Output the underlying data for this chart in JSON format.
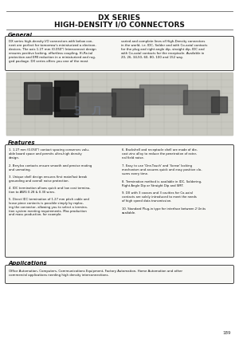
{
  "bg_color": "#ffffff",
  "title_line1": "DX SERIES",
  "title_line2": "HIGH-DENSITY I/O CONNECTORS",
  "general_title": "General",
  "general_text1": "DX series high-density I/O connectors with below con-\nnent are perfect for tomorrow's miniaturized a electron-\ndevices. The axis 1.27 mm (0.050\") Interconnect design\nensures positive locking, effortless coupling, Hi-Re-tal\nprotection and EMI reduction in a miniaturized and rug-\nged package. DX series offers you one of the most",
  "general_text2": "varied and complete lines of High-Density connectors\nin the world, i.e. IDC, Solder and with Co-axial contacts\nfor the plug and right angle dip, straight dip, IDC and\nwith Co-axial contacts for the receptacle. Available in\n20, 26, 34,50, 60, 80, 100 and 152 way.",
  "features_title": "Features",
  "features_left": [
    "1.27 mm (0.050\") contact spacing conserves valu-\nable board space and permits ultra-high density\ndesign.",
    "Berylco contacts ensure smooth and precise mating\nand unmating.",
    "Unique shell design ensures first mate/last break\ngrounding and overall noise protection.",
    "IDC termination allows quick and low cost termina-\ntion to AWG 0.28 & 0.30 wires.",
    "Direct IDC termination of 1.27 mm pitch cable and\nloose piece contacts is possible simply by replac-\ning the connector, allowing you to select a termina-\ntion system meeting requirements. Mas production\nand mass production, for example."
  ],
  "features_right": [
    "Backshell and receptacle shell are made of die-\ncast zinc alloy to reduce the penetration of exter-\nnal field noise.",
    "Easy to use 'One-Touch' and 'Screw' locking\nmechanism and assures quick and easy positive clo-\nsures every time.",
    "Termination method is available in IDC, Soldering,\nRight Angle Dip or Straight Dip and SMT.",
    "DX with 3 coaxes and 3 cavities for Co-axial\ncontacts are solely introduced to meet the needs\nof high speed data transmission.",
    "Standard Plug-in type for interface between 2 Units\navailable."
  ],
  "applications_title": "Applications",
  "applications_text": "Office Automation, Computers, Communications Equipment, Factory Automation, Home Automation and other\ncommercial applications needing high density interconnections.",
  "page_number": "189"
}
